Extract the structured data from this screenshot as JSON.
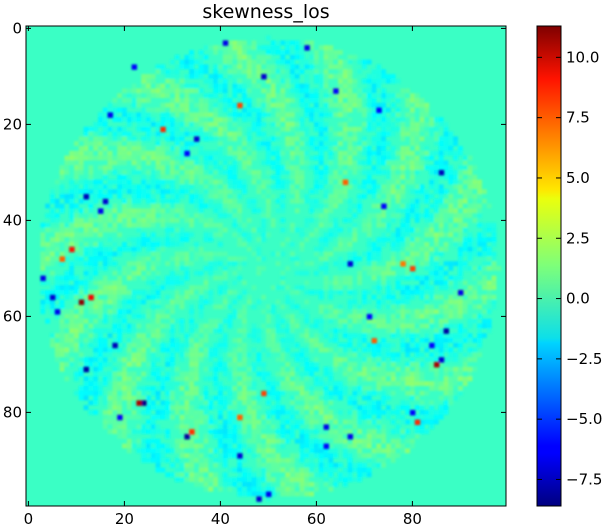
{
  "chart_data": {
    "type": "heatmap",
    "title": "skewness_los",
    "xlabel": "",
    "ylabel": "",
    "xlim": [
      0,
      99
    ],
    "ylim": [
      99,
      0
    ],
    "x_ticks": [
      0,
      20,
      40,
      60,
      80
    ],
    "y_ticks": [
      0,
      20,
      40,
      60,
      80
    ],
    "x_tick_labels": [
      "0",
      "20",
      "40",
      "60",
      "80"
    ],
    "y_tick_labels": [
      "0",
      "20",
      "40",
      "60",
      "80"
    ],
    "grid": false,
    "colormap": "jet",
    "colorbar": {
      "vmin": -8.6,
      "vmax": 11.3,
      "ticks": [
        -7.5,
        -5.0,
        -2.5,
        0.0,
        2.5,
        5.0,
        7.5,
        10.0
      ],
      "tick_labels": [
        "−7.5",
        "−5.0",
        "−2.5",
        "0.0",
        "2.5",
        "5.0",
        "7.5",
        "10.0"
      ]
    },
    "background_value": 0.0,
    "disk": {
      "center": [
        50,
        50
      ],
      "radius": 48
    },
    "notable_pixels": [
      {
        "x": 22,
        "y": 8,
        "value": -6.0
      },
      {
        "x": 49,
        "y": 10,
        "value": -7.0
      },
      {
        "x": 58,
        "y": 4,
        "value": -6.5
      },
      {
        "x": 64,
        "y": 13,
        "value": -6.0
      },
      {
        "x": 17,
        "y": 18,
        "value": -6.5
      },
      {
        "x": 28,
        "y": 21,
        "value": 8.0
      },
      {
        "x": 35,
        "y": 23,
        "value": -7.0
      },
      {
        "x": 33,
        "y": 26,
        "value": -6.0
      },
      {
        "x": 44,
        "y": 16,
        "value": 7.5
      },
      {
        "x": 73,
        "y": 17,
        "value": -6.0
      },
      {
        "x": 86,
        "y": 30,
        "value": -7.5
      },
      {
        "x": 12,
        "y": 35,
        "value": -7.5
      },
      {
        "x": 16,
        "y": 36,
        "value": -7.0
      },
      {
        "x": 15,
        "y": 38,
        "value": -6.5
      },
      {
        "x": 74,
        "y": 37,
        "value": -6.0
      },
      {
        "x": 9,
        "y": 46,
        "value": 8.5
      },
      {
        "x": 7,
        "y": 48,
        "value": 7.0
      },
      {
        "x": 3,
        "y": 52,
        "value": -6.5
      },
      {
        "x": 5,
        "y": 56,
        "value": -7.0
      },
      {
        "x": 6,
        "y": 59,
        "value": -6.5
      },
      {
        "x": 11,
        "y": 57,
        "value": 11.0
      },
      {
        "x": 13,
        "y": 56,
        "value": 9.0
      },
      {
        "x": 67,
        "y": 49,
        "value": -7.0
      },
      {
        "x": 80,
        "y": 50,
        "value": 7.5
      },
      {
        "x": 78,
        "y": 49,
        "value": 6.5
      },
      {
        "x": 87,
        "y": 63,
        "value": -8.0
      },
      {
        "x": 84,
        "y": 66,
        "value": -6.0
      },
      {
        "x": 86,
        "y": 69,
        "value": -7.0
      },
      {
        "x": 85,
        "y": 70,
        "value": 10.5
      },
      {
        "x": 72,
        "y": 65,
        "value": 7.0
      },
      {
        "x": 18,
        "y": 66,
        "value": -7.5
      },
      {
        "x": 12,
        "y": 71,
        "value": -8.0
      },
      {
        "x": 24,
        "y": 78,
        "value": -8.5
      },
      {
        "x": 23,
        "y": 78,
        "value": 10.5
      },
      {
        "x": 19,
        "y": 81,
        "value": -6.0
      },
      {
        "x": 33,
        "y": 85,
        "value": -8.0
      },
      {
        "x": 34,
        "y": 84,
        "value": 8.0
      },
      {
        "x": 44,
        "y": 89,
        "value": -7.0
      },
      {
        "x": 44,
        "y": 81,
        "value": 7.0
      },
      {
        "x": 49,
        "y": 76,
        "value": 7.5
      },
      {
        "x": 62,
        "y": 83,
        "value": -6.5
      },
      {
        "x": 62,
        "y": 87,
        "value": -6.0
      },
      {
        "x": 67,
        "y": 85,
        "value": -6.5
      },
      {
        "x": 81,
        "y": 82,
        "value": 8.0
      },
      {
        "x": 80,
        "y": 80,
        "value": -6.0
      },
      {
        "x": 48,
        "y": 98,
        "value": -7.0
      },
      {
        "x": 50,
        "y": 97,
        "value": -6.5
      },
      {
        "x": 41,
        "y": 3,
        "value": -6.5
      },
      {
        "x": 66,
        "y": 32,
        "value": 7.0
      },
      {
        "x": 90,
        "y": 55,
        "value": -6.5
      },
      {
        "x": 71,
        "y": 60,
        "value": -6.0
      }
    ]
  }
}
